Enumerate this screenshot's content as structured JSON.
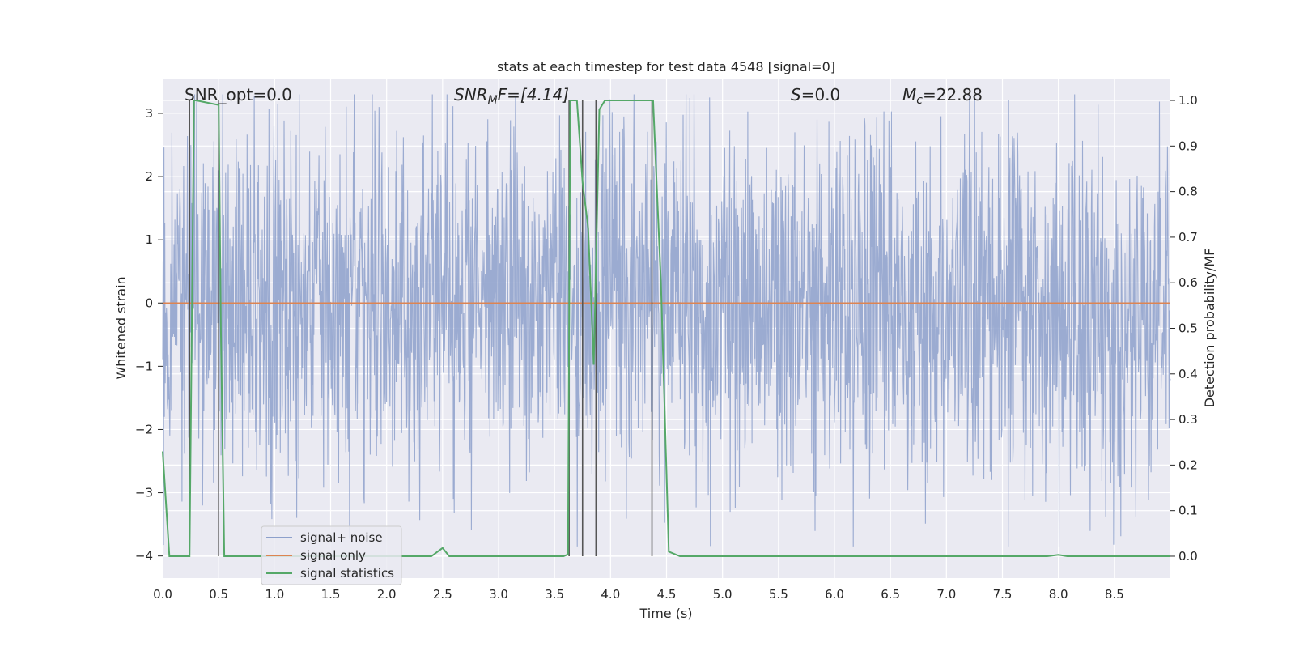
{
  "chart_data": {
    "type": "line",
    "title": "stats at each timestep for test data 4548 [signal=0]",
    "xlabel": "Time (s)",
    "ylabel": "Whitened strain",
    "y2label": "Detection probability/MF",
    "xlim": [
      0.0,
      9.0
    ],
    "ylim": [
      -4.35,
      3.55
    ],
    "y2lim": [
      -0.048,
      1.048
    ],
    "xticks": [
      "0.0",
      "0.5",
      "1.0",
      "1.5",
      "2.0",
      "2.5",
      "3.0",
      "3.5",
      "4.0",
      "4.5",
      "5.0",
      "5.5",
      "6.0",
      "6.5",
      "7.0",
      "7.5",
      "8.0",
      "8.5"
    ],
    "yticks": [
      "3",
      "2",
      "1",
      "0",
      "−1",
      "−2",
      "−3",
      "−4"
    ],
    "y2ticks": [
      "1.0",
      "0.9",
      "0.8",
      "0.7",
      "0.6",
      "0.5",
      "0.4",
      "0.3",
      "0.2",
      "0.1",
      "0.0"
    ],
    "grid": true,
    "legend_position": "lower-left",
    "annotations": {
      "snr_opt": "SNR_opt=0.0",
      "snr_mf_label": "SNR",
      "snr_mf_sub": "M",
      "snr_mf_suffix": "F=[4.14]",
      "s_label": "S",
      "s_value": "=0.0",
      "mc_label": "M",
      "mc_sub": "c",
      "mc_value": "=22.88"
    },
    "series": [
      {
        "name": "signal+ noise",
        "color": "#8da0cb",
        "description": "whitened noisy strain, approx. zero-mean with amplitude ~±2.5, peaks to ~3.3 / -3.6",
        "amplitude": 2.3
      },
      {
        "name": "signal only",
        "color": "#dd8452",
        "x": [
          0.0,
          9.0
        ],
        "values": [
          0.0,
          0.0
        ]
      },
      {
        "name": "signal statistics",
        "color": "#55a868",
        "axis": "right",
        "x": [
          0.0,
          0.06,
          0.2,
          0.24,
          0.28,
          0.3,
          0.5,
          0.52,
          0.55,
          0.6,
          2.4,
          2.5,
          2.56,
          2.62,
          3.58,
          3.62,
          3.64,
          3.7,
          3.75,
          3.8,
          3.85,
          3.9,
          3.95,
          4.38,
          4.45,
          4.52,
          4.62,
          7.9,
          8.0,
          8.08,
          9.0
        ],
        "values": [
          0.23,
          0.0,
          0.0,
          0.0,
          1.0,
          1.0,
          0.99,
          0.5,
          0.0,
          0.0,
          0.0,
          0.018,
          0.0,
          0.0,
          0.0,
          0.004,
          1.0,
          1.0,
          0.82,
          0.72,
          0.42,
          0.98,
          1.0,
          1.0,
          0.6,
          0.01,
          0.0,
          0.0,
          0.003,
          0.0,
          0.0
        ]
      }
    ],
    "vertical_markers": {
      "x": [
        0.24,
        0.5,
        3.63,
        3.75,
        3.87,
        4.37
      ],
      "color": "#555555"
    }
  },
  "legend": {
    "items": [
      {
        "label": "signal+ noise",
        "color": "#8da0cb"
      },
      {
        "label": "signal only",
        "color": "#dd8452"
      },
      {
        "label": "signal statistics",
        "color": "#55a868"
      }
    ]
  }
}
